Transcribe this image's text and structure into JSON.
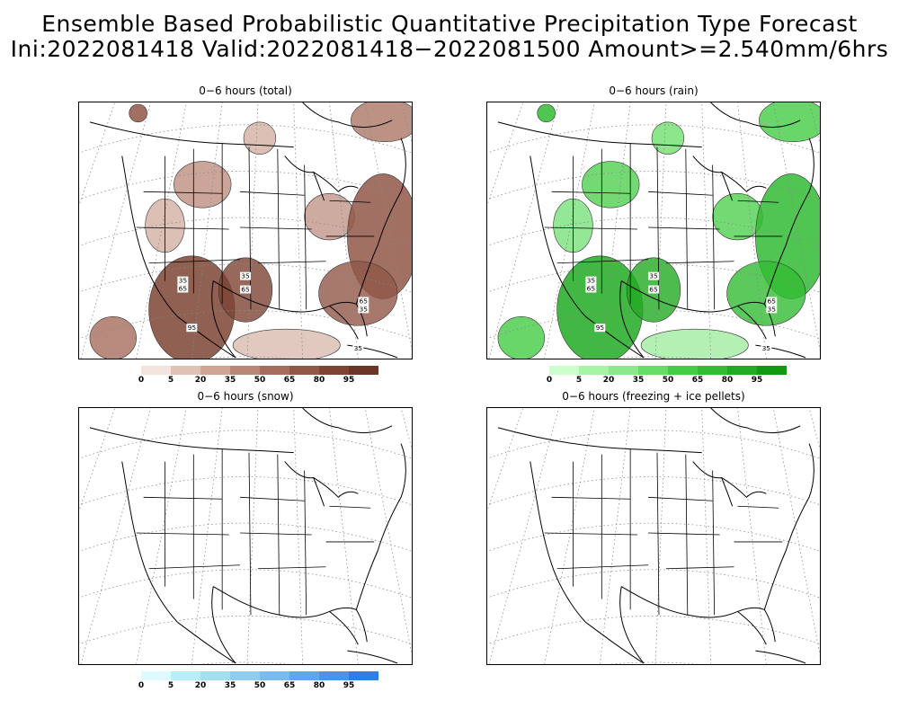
{
  "title": {
    "line1": "Ensemble Based Probabilistic Quantitative Precipitation Type Forecast",
    "line2": "Ini:2022081418 Valid:2022081418−2022081500 Amount>=2.540mm/6hrs"
  },
  "panels": [
    {
      "id": "total",
      "title": "0−6 hours (total)",
      "colorbar": {
        "labels": [
          "0",
          "5",
          "20",
          "35",
          "50",
          "65",
          "80",
          "95"
        ],
        "colors": [
          "#f2e4df",
          "#dfc1b6",
          "#cfa596",
          "#b98777",
          "#a56d5c",
          "#915747",
          "#7d4434",
          "#6b3527"
        ]
      },
      "contour_labels": [
        "35",
        "65",
        "35",
        "65",
        "95",
        "65",
        "35",
        "35"
      ]
    },
    {
      "id": "rain",
      "title": "0−6 hours (rain)",
      "colorbar": {
        "labels": [
          "0",
          "5",
          "20",
          "35",
          "50",
          "65",
          "80",
          "95"
        ],
        "colors": [
          "#ccffcc",
          "#a6f5a6",
          "#8ce88c",
          "#66dd66",
          "#44cc44",
          "#33bb33",
          "#22aa22",
          "#119911"
        ]
      },
      "contour_labels": [
        "35",
        "65",
        "35",
        "65",
        "95",
        "65",
        "35",
        "35"
      ]
    },
    {
      "id": "snow",
      "title": "0−6 hours (snow)",
      "colorbar": {
        "labels": [
          "0",
          "5",
          "20",
          "35",
          "50",
          "65",
          "80",
          "95"
        ],
        "colors": [
          "#e0fbff",
          "#b8eef7",
          "#a4dff0",
          "#8fcdf0",
          "#79bbee",
          "#5fa6ec",
          "#4a92ea",
          "#2f7de6"
        ]
      },
      "contour_labels": []
    },
    {
      "id": "freezing",
      "title": "0−6 hours (freezing + ice pellets)",
      "colorbar": null,
      "contour_labels": []
    }
  ]
}
